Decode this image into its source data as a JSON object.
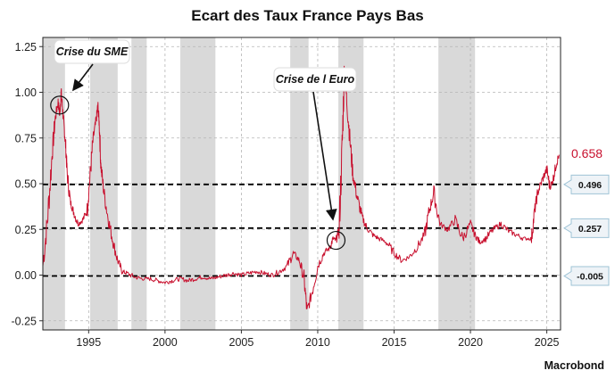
{
  "chart_data": {
    "type": "line",
    "title": "Ecart des Taux France Pays Bas",
    "source": "Macrobond",
    "xlabel": "",
    "ylabel": "",
    "xlim": [
      1992.0,
      2025.9
    ],
    "ylim": [
      -0.3,
      1.3
    ],
    "x_ticks": [
      "1995",
      "2000",
      "2005",
      "2010",
      "2015",
      "2020",
      "2025"
    ],
    "y_ticks": [
      "-0.25",
      "0.00",
      "0.25",
      "0.50",
      "0.75",
      "1.00",
      "1.25"
    ],
    "grid": true,
    "line_color": "#c8102e",
    "last_value": "0.658",
    "shaded_periods": [
      [
        1992.0,
        1993.45
      ],
      [
        1995.1,
        1996.9
      ],
      [
        1997.8,
        1998.8
      ],
      [
        2001.0,
        2003.3
      ],
      [
        2008.2,
        2009.4
      ],
      [
        2011.35,
        2013.0
      ],
      [
        2017.9,
        2020.3
      ]
    ],
    "reference_lines": [
      {
        "value": 0.496,
        "label": "0.496"
      },
      {
        "value": 0.257,
        "label": "0.257"
      },
      {
        "value": -0.005,
        "label": "-0.005"
      }
    ],
    "annotations": [
      {
        "text": "Crise du SME",
        "x": 1993.1,
        "y": 0.93
      },
      {
        "text": "Crise de l Euro",
        "x": 2011.2,
        "y": 0.19
      }
    ],
    "series": [
      {
        "name": "",
        "x": [
          1992.0,
          1992.3,
          1992.6,
          1992.8,
          1993.0,
          1993.1,
          1993.2,
          1993.3,
          1993.4,
          1993.5,
          1993.6,
          1993.8,
          1994.0,
          1994.3,
          1994.6,
          1994.9,
          1995.1,
          1995.3,
          1995.5,
          1995.6,
          1995.7,
          1995.8,
          1996.0,
          1996.3,
          1996.6,
          1996.9,
          1997.2,
          1997.5,
          1998.0,
          1998.5,
          1999.0,
          1999.5,
          2000.0,
          2000.5,
          2001.0,
          2001.5,
          2002.0,
          2002.5,
          2003.0,
          2003.5,
          2004.0,
          2004.5,
          2005.0,
          2005.5,
          2006.0,
          2006.5,
          2007.0,
          2007.5,
          2008.0,
          2008.4,
          2008.8,
          2009.1,
          2009.3,
          2009.6,
          2010.0,
          2010.4,
          2010.8,
          2011.0,
          2011.2,
          2011.4,
          2011.6,
          2011.75,
          2011.9,
          2012.1,
          2012.3,
          2012.6,
          2012.9,
          2013.2,
          2013.6,
          2014.0,
          2014.5,
          2015.0,
          2015.5,
          2016.0,
          2016.5,
          2017.0,
          2017.3,
          2017.6,
          2018.0,
          2018.5,
          2019.0,
          2019.5,
          2020.0,
          2020.3,
          2020.6,
          2021.0,
          2021.5,
          2022.0,
          2022.5,
          2023.0,
          2023.5,
          2024.0,
          2024.2,
          2024.4,
          2024.7,
          2025.0,
          2025.2,
          2025.4,
          2025.6,
          2025.8
        ],
        "y": [
          0.05,
          0.3,
          0.65,
          0.85,
          0.95,
          0.88,
          1.0,
          0.9,
          0.8,
          0.7,
          0.55,
          0.4,
          0.35,
          0.28,
          0.3,
          0.35,
          0.55,
          0.75,
          0.85,
          0.93,
          0.82,
          0.6,
          0.45,
          0.3,
          0.18,
          0.08,
          0.02,
          0.01,
          -0.01,
          -0.02,
          -0.02,
          -0.03,
          -0.04,
          -0.03,
          -0.02,
          -0.03,
          -0.02,
          -0.01,
          -0.02,
          -0.01,
          0.0,
          0.01,
          0.0,
          0.01,
          0.02,
          0.01,
          0.0,
          0.02,
          0.05,
          0.12,
          0.08,
          -0.02,
          -0.2,
          -0.1,
          0.05,
          0.12,
          0.15,
          0.2,
          0.19,
          0.25,
          0.7,
          1.15,
          0.95,
          0.75,
          0.55,
          0.42,
          0.32,
          0.26,
          0.22,
          0.2,
          0.18,
          0.12,
          0.08,
          0.1,
          0.15,
          0.22,
          0.35,
          0.45,
          0.28,
          0.25,
          0.3,
          0.2,
          0.28,
          0.22,
          0.18,
          0.2,
          0.25,
          0.28,
          0.24,
          0.22,
          0.2,
          0.2,
          0.35,
          0.45,
          0.52,
          0.58,
          0.48,
          0.52,
          0.6,
          0.658
        ]
      }
    ]
  }
}
